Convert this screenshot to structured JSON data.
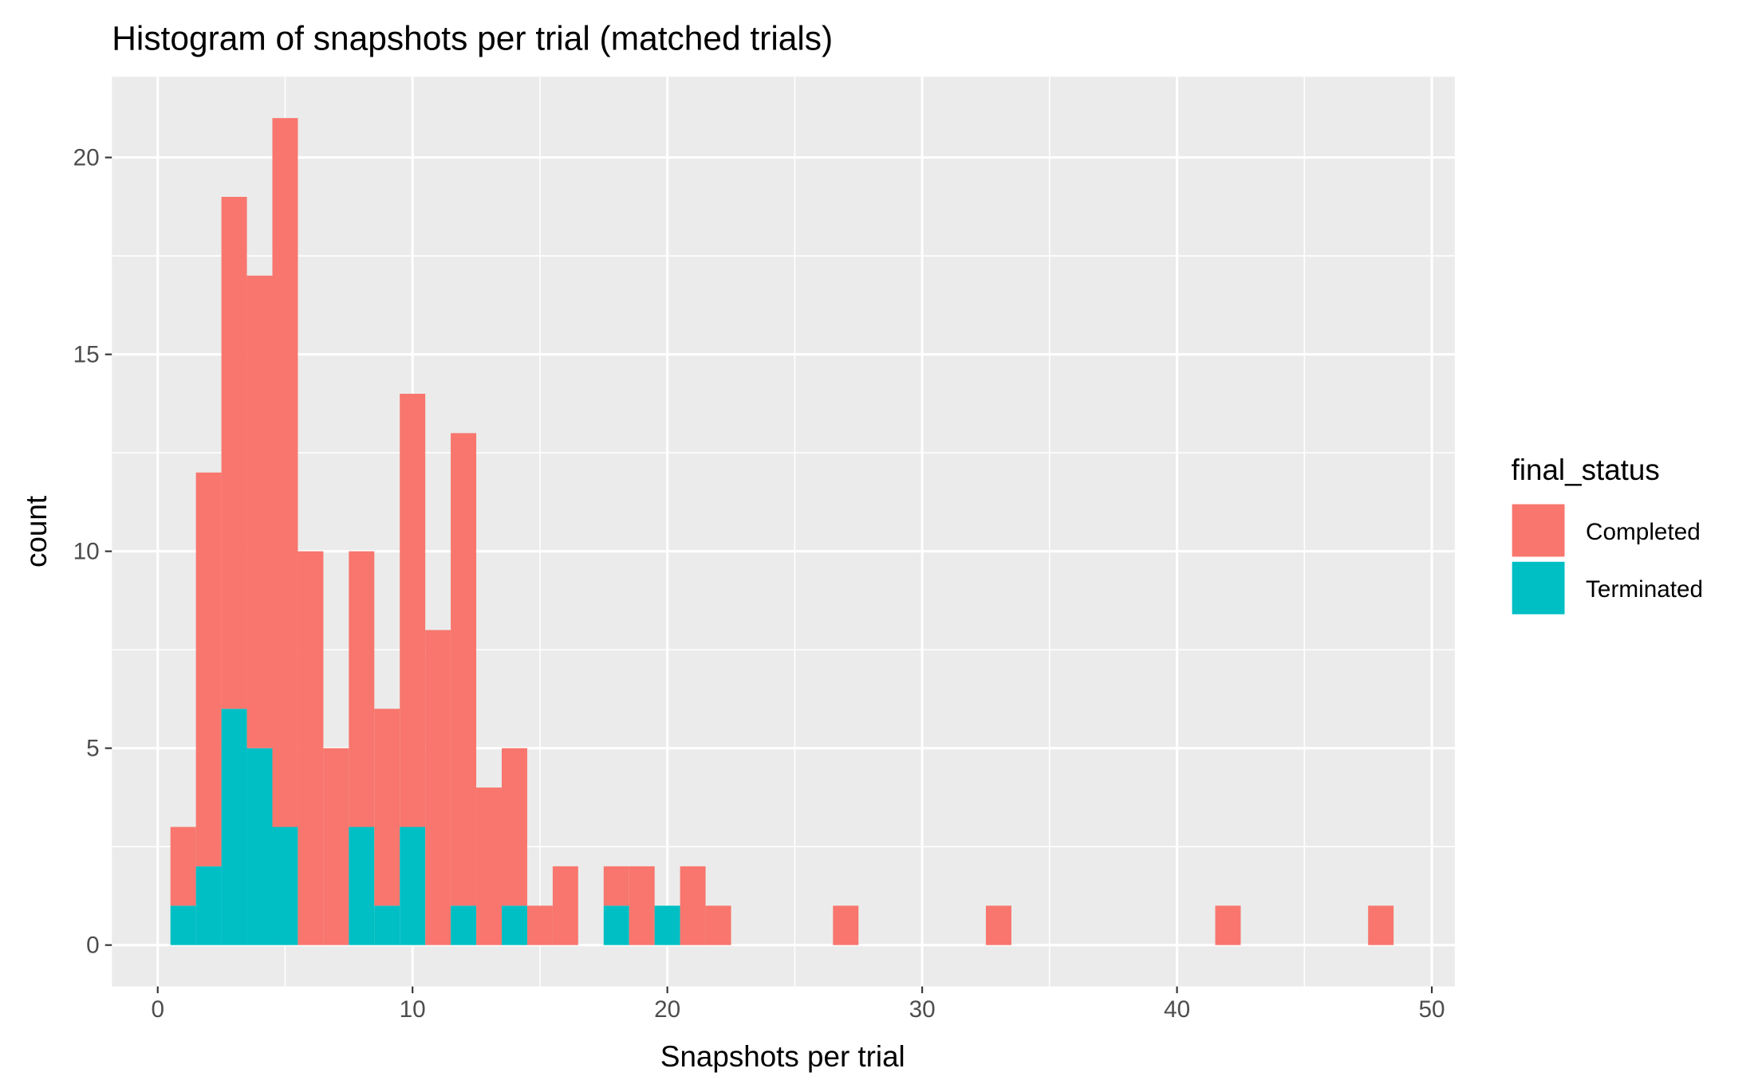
{
  "chart_data": {
    "type": "bar",
    "stacked": true,
    "title": "Histogram of snapshots per trial (matched trials)",
    "xlabel": "Snapshots per trial",
    "ylabel": "count",
    "xlim": [
      -1.8,
      50.9
    ],
    "ylim": [
      -1.05,
      22.05
    ],
    "xticks": [
      0,
      10,
      20,
      30,
      40,
      50
    ],
    "yticks": [
      0,
      5,
      10,
      15,
      20
    ],
    "bin_width": 1,
    "grid": true,
    "legend": {
      "title": "final_status",
      "position": "right"
    },
    "x": [
      1,
      2,
      3,
      4,
      5,
      6,
      7,
      8,
      9,
      10,
      11,
      12,
      13,
      14,
      15,
      16,
      18,
      19,
      20,
      21,
      22,
      27,
      33,
      42,
      48
    ],
    "series": [
      {
        "name": "Completed",
        "color": "#F8766D",
        "values": [
          2,
          10,
          13,
          12,
          18,
          10,
          5,
          7,
          5,
          11,
          8,
          12,
          4,
          4,
          1,
          2,
          1,
          2,
          0,
          2,
          1,
          1,
          1,
          1,
          1
        ]
      },
      {
        "name": "Terminated",
        "color": "#00BFC4",
        "values": [
          1,
          2,
          6,
          5,
          3,
          0,
          0,
          3,
          1,
          3,
          0,
          1,
          0,
          1,
          0,
          0,
          1,
          0,
          1,
          0,
          0,
          0,
          0,
          0,
          0
        ]
      }
    ],
    "colors": {
      "panel": "#EBEBEB",
      "grid": "#FFFFFF",
      "text": "#4D4D4D"
    }
  }
}
